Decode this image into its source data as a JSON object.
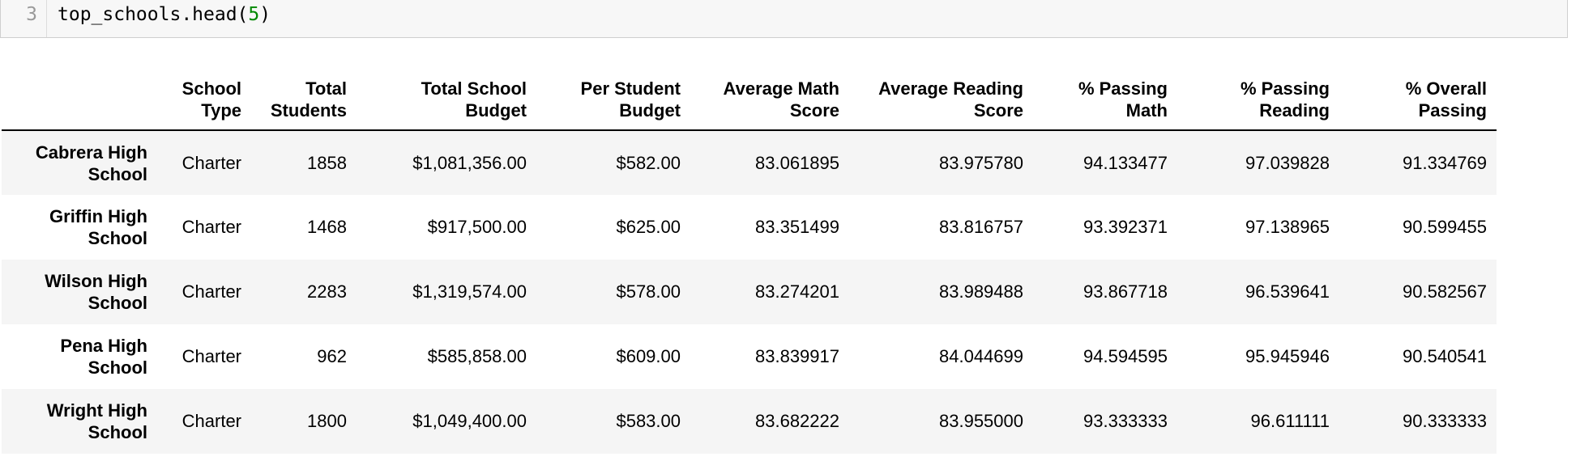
{
  "code_cell": {
    "line_number": "3",
    "code_prefix": "top_schools.head(",
    "code_arg": "5",
    "code_suffix": ")"
  },
  "table": {
    "index_header": "",
    "columns": [
      "School Type",
      "Total Students",
      "Total School Budget",
      "Per Student Budget",
      "Average Math Score",
      "Average Reading Score",
      "% Passing Math",
      "% Passing Reading",
      "% Overall Passing"
    ],
    "rows": [
      {
        "index": "Cabrera High School",
        "cells": [
          "Charter",
          "1858",
          "$1,081,356.00",
          "$582.00",
          "83.061895",
          "83.975780",
          "94.133477",
          "97.039828",
          "91.334769"
        ]
      },
      {
        "index": "Griffin High School",
        "cells": [
          "Charter",
          "1468",
          "$917,500.00",
          "$625.00",
          "83.351499",
          "83.816757",
          "93.392371",
          "97.138965",
          "90.599455"
        ]
      },
      {
        "index": "Wilson High School",
        "cells": [
          "Charter",
          "2283",
          "$1,319,574.00",
          "$578.00",
          "83.274201",
          "83.989488",
          "93.867718",
          "96.539641",
          "90.582567"
        ]
      },
      {
        "index": "Pena High School",
        "cells": [
          "Charter",
          "962",
          "$585,858.00",
          "$609.00",
          "83.839917",
          "84.044699",
          "94.594595",
          "95.945946",
          "90.540541"
        ]
      },
      {
        "index": "Wright High School",
        "cells": [
          "Charter",
          "1800",
          "$1,049,400.00",
          "$583.00",
          "83.682222",
          "83.955000",
          "93.333333",
          "96.611111",
          "90.333333"
        ]
      }
    ]
  }
}
